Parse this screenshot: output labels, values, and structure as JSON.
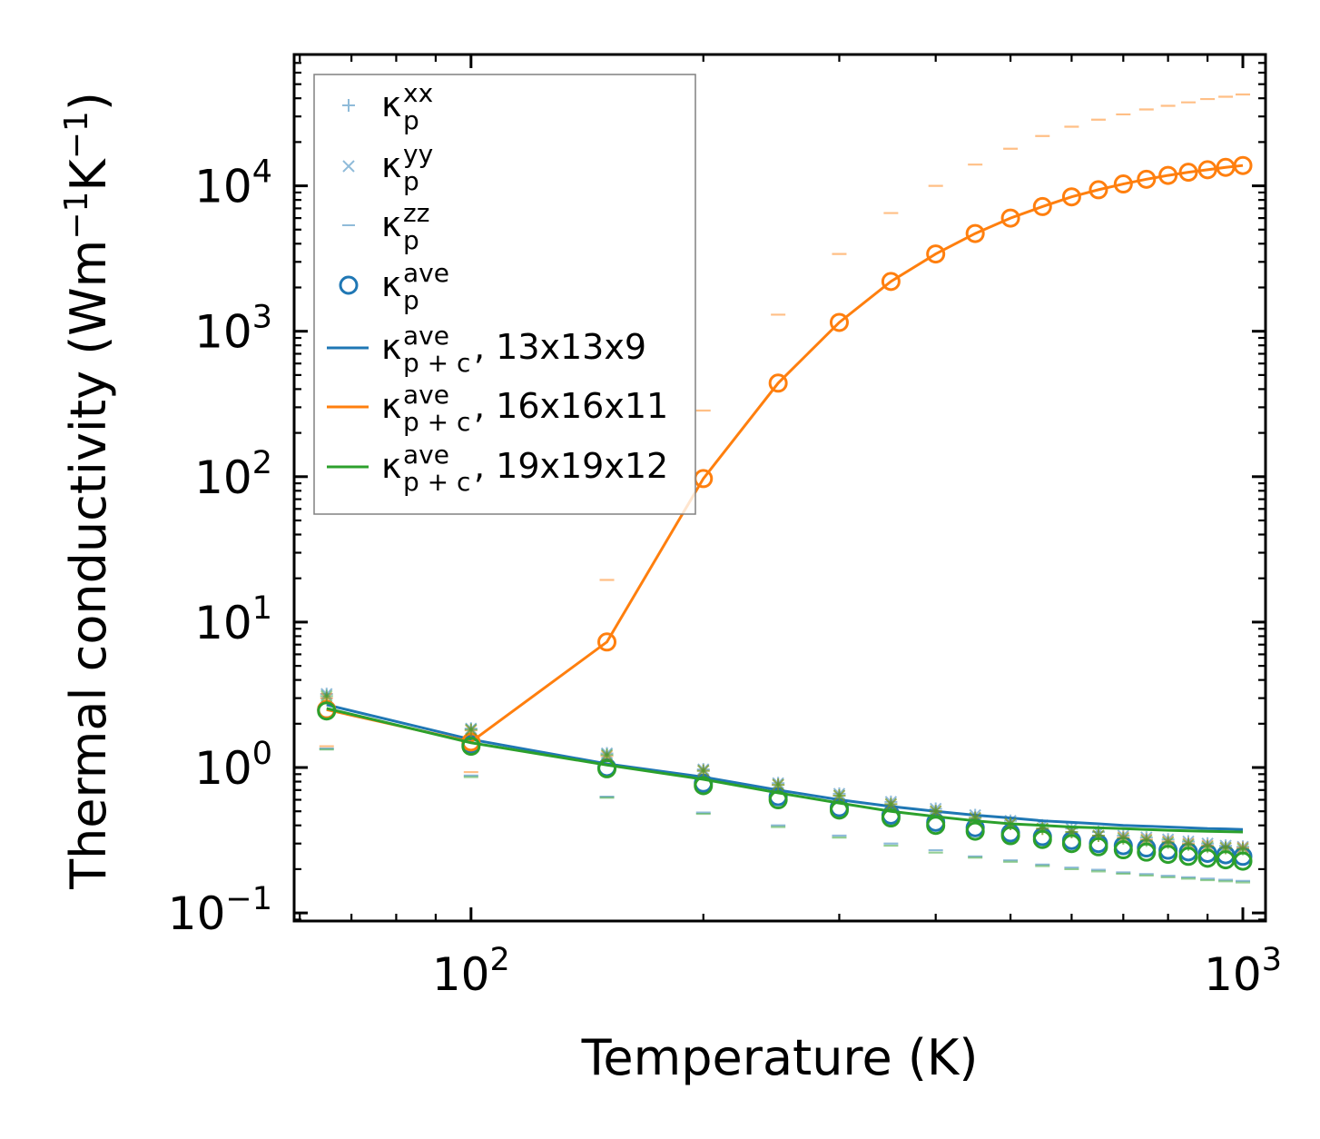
{
  "chart_data": {
    "type": "line",
    "scale": {
      "x": "log",
      "y": "log"
    },
    "xlabel": "Temperature (K)",
    "ylabel": "Thermal conductivity (Wm",
    "ylabel_tail": ")",
    "ylabel_exp": "−1",
    "ylabel_unit2": "K",
    "xlim": [
      59,
      1070
    ],
    "ylim": [
      0.088,
      80000
    ],
    "x_ticks": [
      {
        "value": 100,
        "base": "10",
        "exp": "2"
      },
      {
        "value": 1000,
        "base": "10",
        "exp": "3"
      }
    ],
    "y_ticks": [
      {
        "value": 0.1,
        "base": "10",
        "exp": "−1"
      },
      {
        "value": 1,
        "base": "10",
        "exp": "0"
      },
      {
        "value": 10,
        "base": "10",
        "exp": "1"
      },
      {
        "value": 100,
        "base": "10",
        "exp": "2"
      },
      {
        "value": 1000,
        "base": "10",
        "exp": "3"
      },
      {
        "value": 10000,
        "base": "10",
        "exp": "4"
      }
    ],
    "temperatures": [
      65,
      100,
      150,
      200,
      250,
      300,
      350,
      400,
      450,
      500,
      550,
      600,
      650,
      700,
      750,
      800,
      850,
      900,
      950,
      1000
    ],
    "series": [
      {
        "name": "13x13x9",
        "color": "#1f77b4",
        "line": [
          2.7,
          1.56,
          1.06,
          0.86,
          0.7,
          0.6,
          0.54,
          0.5,
          0.47,
          0.45,
          0.43,
          0.42,
          0.41,
          0.4,
          0.395,
          0.39,
          0.385,
          0.38,
          0.378,
          0.375
        ],
        "ave": [
          2.5,
          1.45,
          1.0,
          0.78,
          0.63,
          0.53,
          0.47,
          0.42,
          0.385,
          0.355,
          0.335,
          0.315,
          0.3,
          0.29,
          0.28,
          0.27,
          0.263,
          0.257,
          0.251,
          0.245
        ],
        "xx": [
          3.2,
          1.85,
          1.25,
          0.97,
          0.78,
          0.66,
          0.58,
          0.52,
          0.47,
          0.43,
          0.4,
          0.38,
          0.36,
          0.34,
          0.33,
          0.32,
          0.31,
          0.3,
          0.29,
          0.285
        ],
        "yy": [
          3.2,
          1.85,
          1.25,
          0.97,
          0.78,
          0.66,
          0.58,
          0.52,
          0.47,
          0.43,
          0.4,
          0.38,
          0.36,
          0.34,
          0.33,
          0.32,
          0.31,
          0.3,
          0.29,
          0.285
        ],
        "zz": [
          1.35,
          0.88,
          0.63,
          0.49,
          0.4,
          0.34,
          0.3,
          0.27,
          0.245,
          0.23,
          0.215,
          0.205,
          0.198,
          0.19,
          0.185,
          0.18,
          0.176,
          0.172,
          0.169,
          0.166
        ]
      },
      {
        "name": "16x16x11",
        "color": "#ff7f0e",
        "line": [
          2.5,
          1.5,
          7.3,
          97,
          440,
          1150,
          2200,
          3400,
          4700,
          6000,
          7200,
          8400,
          9400,
          10300,
          11100,
          11800,
          12400,
          12900,
          13400,
          13800
        ],
        "ave": [
          2.5,
          1.5,
          7.3,
          97,
          440,
          1150,
          2200,
          3400,
          4700,
          6000,
          7200,
          8400,
          9400,
          10300,
          11100,
          11800,
          12400,
          12900,
          13400,
          13800
        ],
        "xx": [
          3.0,
          1.8,
          1.2,
          0.95,
          0.76,
          0.64,
          0.56,
          0.5,
          0.45,
          0.41,
          0.38,
          0.36,
          0.34,
          0.33,
          0.32,
          0.31,
          0.3,
          0.29,
          0.28,
          0.28
        ],
        "yy": [
          3.0,
          1.8,
          1.2,
          0.95,
          0.76,
          0.64,
          0.56,
          0.5,
          0.45,
          0.41,
          0.38,
          0.36,
          0.34,
          0.33,
          0.32,
          0.31,
          0.3,
          0.29,
          0.28,
          0.28
        ],
        "zz": [
          1.4,
          0.93,
          19.5,
          285,
          1300,
          3400,
          6500,
          10000,
          14000,
          18000,
          22000,
          25500,
          28500,
          31000,
          33500,
          35500,
          37500,
          39500,
          41000,
          42500
        ]
      },
      {
        "name": "19x19x12",
        "color": "#2ca02c",
        "line": [
          2.55,
          1.48,
          1.04,
          0.83,
          0.67,
          0.57,
          0.5,
          0.46,
          0.43,
          0.41,
          0.4,
          0.39,
          0.385,
          0.38,
          0.375,
          0.37,
          0.367,
          0.364,
          0.362,
          0.36
        ],
        "ave": [
          2.45,
          1.4,
          0.98,
          0.75,
          0.6,
          0.51,
          0.45,
          0.4,
          0.365,
          0.34,
          0.32,
          0.3,
          0.285,
          0.272,
          0.262,
          0.253,
          0.245,
          0.238,
          0.232,
          0.227
        ],
        "xx": [
          3.1,
          1.82,
          1.22,
          0.95,
          0.76,
          0.64,
          0.56,
          0.5,
          0.45,
          0.41,
          0.38,
          0.36,
          0.34,
          0.325,
          0.315,
          0.305,
          0.295,
          0.285,
          0.28,
          0.275
        ],
        "yy": [
          3.1,
          1.82,
          1.22,
          0.95,
          0.76,
          0.64,
          0.56,
          0.5,
          0.45,
          0.41,
          0.38,
          0.36,
          0.34,
          0.325,
          0.315,
          0.305,
          0.295,
          0.285,
          0.28,
          0.275
        ],
        "zz": [
          1.33,
          0.86,
          0.62,
          0.48,
          0.39,
          0.33,
          0.29,
          0.26,
          0.24,
          0.225,
          0.21,
          0.2,
          0.193,
          0.186,
          0.181,
          0.176,
          0.172,
          0.168,
          0.165,
          0.162
        ]
      }
    ],
    "legend": {
      "position": "upper-left",
      "entries": [
        {
          "kind": "plus",
          "symbol": "κ",
          "sub": "p",
          "sup": "xx",
          "suffix": "",
          "color": "#1f77b4"
        },
        {
          "kind": "cross",
          "symbol": "κ",
          "sub": "p",
          "sup": "yy",
          "suffix": "",
          "color": "#1f77b4"
        },
        {
          "kind": "dash",
          "symbol": "κ",
          "sub": "p",
          "sup": "zz",
          "suffix": "",
          "color": "#1f77b4"
        },
        {
          "kind": "circle",
          "symbol": "κ",
          "sub": "p",
          "sup": "ave",
          "suffix": "",
          "color": "#1f77b4"
        },
        {
          "kind": "line",
          "symbol": "κ",
          "sub": "p + c",
          "sup": "ave",
          "suffix": ", 13x13x9",
          "color": "#1f77b4"
        },
        {
          "kind": "line",
          "symbol": "κ",
          "sub": "p + c",
          "sup": "ave",
          "suffix": ", 16x16x11",
          "color": "#ff7f0e"
        },
        {
          "kind": "line",
          "symbol": "κ",
          "sub": "p + c",
          "sup": "ave",
          "suffix": ", 19x19x12",
          "color": "#2ca02c"
        }
      ]
    }
  }
}
